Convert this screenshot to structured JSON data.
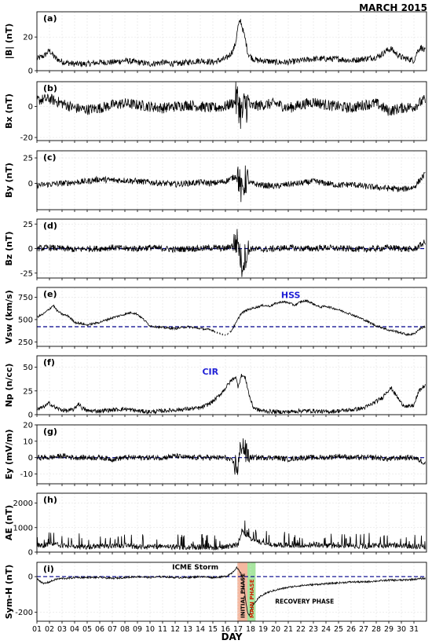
{
  "figure": {
    "title": "MARCH 2015",
    "xlabel": "DAY"
  },
  "colors": {
    "line": "#000000",
    "dashed": "#00008b",
    "annotation": "#1f1fd6",
    "grid": "#dddddd",
    "initial_phase": "#f4b8a0",
    "main_phase": "#a8e6a0",
    "main_phase_text": "#cc2200"
  },
  "day_ticks": [
    "01",
    "02",
    "03",
    "04",
    "05",
    "06",
    "07",
    "08",
    "09",
    "10",
    "11",
    "12",
    "13",
    "14",
    "15",
    "16",
    "17",
    "18",
    "19",
    "20",
    "21",
    "22",
    "23",
    "24",
    "25",
    "26",
    "27",
    "28",
    "29",
    "30",
    "31"
  ],
  "chart_data": [
    {
      "type": "line",
      "panel": "(a)",
      "ylabel": "|B| (nT)",
      "ylim": [
        0,
        35
      ],
      "yticks": [
        0,
        20
      ],
      "x": [
        1,
        1.6,
        2.0,
        2.4,
        2.8,
        3.2,
        4,
        5,
        6,
        7,
        8,
        9,
        10,
        11,
        12,
        13,
        14,
        15,
        15.5,
        16,
        16.3,
        16.6,
        16.8,
        17.0,
        17.2,
        17.4,
        17.6,
        17.8,
        18.2,
        18.6,
        19,
        20,
        21,
        22,
        23,
        24,
        25,
        26,
        27,
        28,
        28.5,
        28.8,
        29.2,
        29.6,
        30,
        30.5,
        31,
        31.3,
        31.6,
        31.8
      ],
      "values": [
        7,
        9,
        12,
        8,
        6,
        5,
        4,
        4,
        5,
        5,
        6,
        5,
        4,
        5,
        4,
        5,
        6,
        5,
        6,
        7,
        9,
        12,
        16,
        26,
        30,
        24,
        18,
        10,
        7,
        6,
        6,
        5,
        5,
        6,
        7,
        7,
        7,
        6,
        7,
        8,
        10,
        12,
        13,
        10,
        8,
        7,
        6,
        12,
        14,
        12
      ],
      "noise": 1.8
    },
    {
      "type": "line",
      "panel": "(b)",
      "ylabel": "Bx (nT)",
      "ylim": [
        -22,
        16
      ],
      "yticks": [
        -20,
        0
      ],
      "x": [
        1,
        2,
        3,
        4,
        5,
        6,
        7,
        8,
        9,
        10,
        11,
        12,
        13,
        14,
        15,
        16,
        16.5,
        17,
        17.3,
        17.6,
        18,
        19,
        20,
        21,
        22,
        23,
        24,
        25,
        26,
        27,
        28,
        29,
        30,
        31,
        31.8
      ],
      "values": [
        4,
        5,
        2,
        -1,
        -2,
        -1,
        1,
        2,
        1,
        0,
        -1,
        0,
        1,
        0,
        -1,
        0,
        2,
        4,
        -6,
        2,
        0,
        1,
        2,
        -1,
        1,
        3,
        1,
        0,
        -1,
        1,
        2,
        -3,
        -1,
        0,
        4
      ],
      "noise": 3.5,
      "burst": [
        16.8,
        17.9,
        9
      ]
    },
    {
      "type": "line",
      "panel": "(c)",
      "ylabel": "By (nT)",
      "ylim": [
        -26,
        32
      ],
      "yticks": [
        0,
        25
      ],
      "x": [
        1,
        2,
        3,
        4,
        5,
        6,
        7,
        8,
        9,
        10,
        11,
        12,
        13,
        14,
        15,
        16,
        16.5,
        17,
        17.3,
        17.6,
        18,
        19,
        20,
        21,
        22,
        23,
        24,
        25,
        26,
        27,
        28,
        29,
        30,
        31,
        31.8
      ],
      "values": [
        -2,
        -1,
        0,
        1,
        2,
        4,
        3,
        3,
        2,
        1,
        0,
        -1,
        0,
        1,
        0,
        2,
        5,
        8,
        -10,
        4,
        0,
        -2,
        -3,
        -1,
        0,
        2,
        0,
        -2,
        -1,
        -3,
        -4,
        -5,
        -6,
        -4,
        8
      ],
      "noise": 3.0,
      "burst": [
        16.9,
        17.8,
        12
      ]
    },
    {
      "type": "line",
      "panel": "(d)",
      "ylabel": "Bz (nT)",
      "ylim": [
        -30,
        30
      ],
      "yticks": [
        -25,
        0,
        25
      ],
      "x": [
        1,
        2,
        3,
        4,
        5,
        6,
        7,
        8,
        9,
        10,
        11,
        12,
        13,
        14,
        15,
        16,
        16.5,
        17,
        17.3,
        17.6,
        18,
        19,
        20,
        21,
        22,
        23,
        24,
        25,
        26,
        27,
        28,
        29,
        30,
        31,
        31.8
      ],
      "values": [
        0,
        1,
        0,
        -1,
        0,
        0,
        1,
        0,
        0,
        1,
        0,
        -1,
        0,
        0,
        1,
        0,
        3,
        8,
        -18,
        -6,
        0,
        -1,
        0,
        1,
        0,
        0,
        1,
        0,
        0,
        -1,
        0,
        1,
        0,
        -1,
        6
      ],
      "noise": 3.2,
      "burst": [
        16.6,
        17.9,
        11
      ],
      "baseline": 0
    },
    {
      "type": "line",
      "panel": "(e)",
      "ylabel": "Vsw (km/s)",
      "ylim": [
        200,
        860
      ],
      "yticks": [
        250,
        500,
        750
      ],
      "x": [
        1,
        1.5,
        2,
        2.3,
        2.6,
        3,
        3.5,
        4,
        5,
        6,
        7,
        8,
        8.5,
        9,
        9.5,
        10,
        11,
        12,
        13,
        14,
        15,
        15.5,
        16,
        16.4,
        16.8,
        17.2,
        17.6,
        18,
        18.5,
        19,
        19.5,
        20,
        20.5,
        21,
        21.5,
        22,
        22.5,
        22.8,
        23.5,
        24,
        25,
        26,
        27,
        28,
        28.5,
        29,
        29.5,
        30,
        30.5,
        31,
        31.4,
        31.8
      ],
      "values": [
        530,
        560,
        620,
        660,
        600,
        560,
        540,
        470,
        440,
        470,
        520,
        560,
        580,
        560,
        500,
        430,
        410,
        400,
        420,
        400,
        380,
        340,
        330,
        360,
        450,
        560,
        600,
        620,
        640,
        660,
        650,
        680,
        700,
        690,
        660,
        700,
        710,
        690,
        640,
        650,
        610,
        560,
        500,
        430,
        410,
        380,
        370,
        350,
        330,
        340,
        390,
        420
      ],
      "noise": 12,
      "gaps": [
        [
          15.2,
          16.4
        ]
      ],
      "baseline": 420,
      "annotation": {
        "text": "HSS",
        "x": 21.2,
        "y": 740
      }
    },
    {
      "type": "line",
      "panel": "(f)",
      "ylabel": "Np (n/cc)",
      "ylim": [
        0,
        62
      ],
      "yticks": [
        0,
        25,
        50
      ],
      "x": [
        1,
        1.5,
        2,
        2.5,
        3,
        3.5,
        4,
        4.3,
        4.6,
        5,
        6,
        7,
        8,
        9,
        10,
        11,
        12,
        13,
        14,
        14.5,
        15,
        15.5,
        16,
        16.4,
        16.8,
        17.0,
        17.3,
        17.6,
        17.9,
        18.2,
        18.6,
        19,
        20,
        21,
        22,
        23,
        24,
        25,
        26,
        27,
        27.5,
        28,
        28.5,
        28.8,
        29.2,
        29.6,
        30,
        30.5,
        31,
        31.4,
        31.8
      ],
      "values": [
        5,
        8,
        12,
        7,
        5,
        4,
        6,
        12,
        7,
        4,
        4,
        5,
        6,
        4,
        3,
        4,
        5,
        6,
        7,
        10,
        14,
        20,
        28,
        35,
        40,
        30,
        42,
        38,
        20,
        8,
        5,
        4,
        3,
        3,
        4,
        4,
        3,
        4,
        5,
        7,
        10,
        14,
        18,
        24,
        28,
        20,
        12,
        8,
        10,
        25,
        30
      ],
      "noise": 2.2,
      "annotation": {
        "text": "CIR",
        "x": 14.8,
        "y": 42
      }
    },
    {
      "type": "line",
      "panel": "(g)",
      "ylabel": "Ey (mV/m)",
      "ylim": [
        -16,
        20
      ],
      "yticks": [
        -10,
        0,
        10,
        20
      ],
      "x": [
        1,
        2,
        3,
        4,
        5,
        6,
        7,
        8,
        9,
        10,
        11,
        12,
        13,
        14,
        15,
        16,
        16.5,
        17,
        17.3,
        17.6,
        18,
        19,
        20,
        21,
        22,
        23,
        24,
        25,
        26,
        27,
        28,
        29,
        30,
        31,
        31.8
      ],
      "values": [
        0,
        0,
        1,
        0,
        0,
        0,
        -1,
        0,
        0,
        0,
        0,
        1,
        0,
        0,
        0,
        0,
        -2,
        -6,
        10,
        3,
        0,
        0,
        0,
        -1,
        0,
        0,
        0,
        1,
        0,
        0,
        0,
        -1,
        0,
        0,
        -3
      ],
      "noise": 1.6,
      "burst": [
        16.7,
        17.9,
        6
      ],
      "baseline": 0
    },
    {
      "type": "line",
      "panel": "(h)",
      "ylabel": "AE (nT)",
      "ylim": [
        0,
        2400
      ],
      "yticks": [
        0,
        1000,
        2000
      ],
      "x": [
        1,
        2,
        3,
        4,
        5,
        6,
        7,
        8,
        9,
        10,
        11,
        12,
        13,
        14,
        15,
        16,
        16.5,
        17,
        17.3,
        17.6,
        18,
        18.5,
        19,
        20,
        21,
        22,
        23,
        24,
        25,
        26,
        27,
        28,
        29,
        30,
        31,
        31.8
      ],
      "values": [
        300,
        400,
        350,
        250,
        200,
        250,
        300,
        300,
        250,
        200,
        250,
        200,
        150,
        200,
        150,
        200,
        300,
        400,
        1500,
        1200,
        900,
        700,
        500,
        400,
        350,
        300,
        400,
        300,
        250,
        300,
        250,
        300,
        350,
        300,
        250,
        200
      ],
      "noise": 220,
      "positive": true
    },
    {
      "type": "line",
      "panel": "(i)",
      "ylabel": "Sym-H (nT)",
      "ylim": [
        -250,
        80
      ],
      "yticks": [
        -200,
        0
      ],
      "x": [
        1,
        1.5,
        2,
        2.5,
        3,
        3.5,
        4,
        5,
        6,
        7,
        8,
        9,
        10,
        11,
        12,
        13,
        14,
        15,
        16,
        16.5,
        16.9,
        17.1,
        17.3,
        17.45,
        17.6,
        17.75,
        17.9,
        18.1,
        18.4,
        18.8,
        19.3,
        20,
        21,
        22,
        23,
        24,
        25,
        26,
        27,
        28,
        29,
        30,
        31,
        31.8
      ],
      "values": [
        -10,
        -40,
        -30,
        -15,
        -10,
        -10,
        -5,
        -5,
        -5,
        -10,
        -5,
        0,
        -5,
        0,
        -5,
        -5,
        0,
        -5,
        0,
        20,
        50,
        30,
        10,
        -40,
        -130,
        -200,
        -215,
        -170,
        -140,
        -110,
        -90,
        -75,
        -60,
        -50,
        -45,
        -40,
        -35,
        -30,
        -30,
        -25,
        -20,
        -20,
        -15,
        -10
      ],
      "noise": 5,
      "baseline": 0,
      "storm": {
        "label": "ICME Storm",
        "label_x": 13.6,
        "label_y": 40,
        "initial_phase": {
          "label": "INITIAL PHASE",
          "start": 16.95,
          "end": 17.75
        },
        "main_phase": {
          "label": "MAIN PHASE",
          "start": 17.75,
          "end": 18.4
        },
        "recovery_label": "RECOVERY PHASE",
        "recovery_x": 22.3,
        "recovery_y": -150
      }
    }
  ]
}
